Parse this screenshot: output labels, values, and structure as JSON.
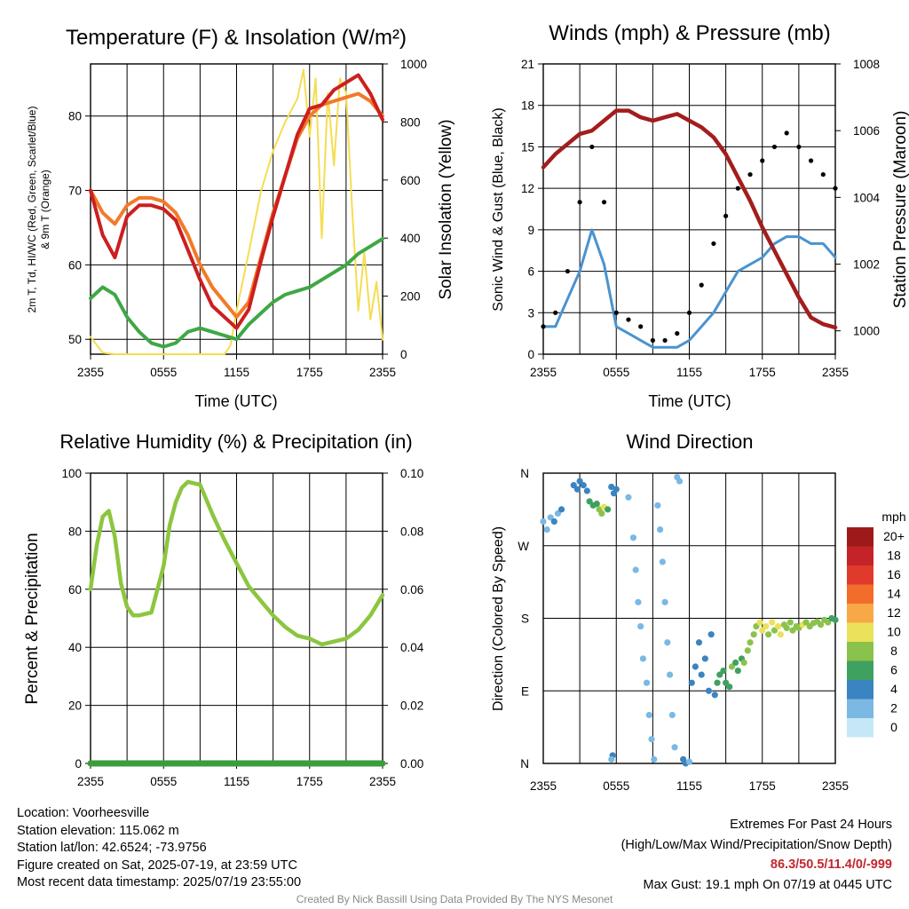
{
  "colors": {
    "temp_2m": "#cc1f1f",
    "temp_9m": "#f27a2a",
    "heat_index": "#cc1f1f",
    "dewpoint": "#3fa845",
    "insolation": "#f5dd52",
    "wind": "#4a93cf",
    "gust": "#000000",
    "pressure": "#a31d1d",
    "rh": "#8cc63f",
    "precip": "#3a9e3a",
    "grid": "#000000"
  },
  "chart_data": [
    {
      "type": "line",
      "title": "Temperature (F) & Insolation (W/m²)",
      "xlabel": "Time (UTC)",
      "ylabel_left": "2m T, Td, HI/WC (Red, Green, Scarlet/Blue) & 9m T (Orange)",
      "ylabel_left_lines": [
        "2m T, Td, HI/WC (Red, Green, Scarlet/Blue)",
        "& 9m T (Orange)"
      ],
      "ylabel_right": "Solar Insolation (Yellow)",
      "x_ticks": [
        "2355",
        "0555",
        "1155",
        "1755",
        "2355"
      ],
      "ylim_left": [
        48,
        87
      ],
      "yticks_left": [
        50,
        60,
        70,
        80
      ],
      "ylim_right": [
        0,
        1000
      ],
      "yticks_right": [
        0,
        200,
        400,
        600,
        800,
        1000
      ],
      "series": [
        {
          "key": "temp_9m",
          "axis": "left",
          "x": [
            0,
            1,
            2,
            3,
            4,
            5,
            6,
            7,
            8,
            9,
            10,
            11,
            12,
            13,
            14,
            15,
            16,
            17,
            18,
            19,
            20,
            21,
            22,
            23,
            24
          ],
          "values": [
            70,
            67,
            65.5,
            68,
            69,
            69,
            68.5,
            67,
            64,
            60,
            57,
            55,
            53,
            55,
            61,
            67,
            72,
            77,
            80,
            81.5,
            82,
            82.5,
            83,
            82,
            80
          ]
        },
        {
          "key": "temp_2m",
          "axis": "left",
          "x": [
            0,
            1,
            2,
            3,
            4,
            5,
            6,
            7,
            8,
            9,
            10,
            11,
            12,
            13,
            14,
            15,
            16,
            17,
            18,
            19,
            20,
            21,
            22,
            23,
            24
          ],
          "values": [
            70,
            64,
            61,
            66.5,
            68,
            68,
            67.5,
            66,
            62,
            58,
            54.5,
            53,
            51.5,
            54,
            60.5,
            66.5,
            72,
            77.5,
            81,
            81.5,
            83.5,
            84.5,
            85.5,
            83,
            79.5
          ]
        },
        {
          "key": "dewpoint",
          "axis": "left",
          "x": [
            0,
            1,
            2,
            3,
            4,
            5,
            6,
            7,
            8,
            9,
            10,
            11,
            12,
            13,
            14,
            15,
            16,
            17,
            18,
            19,
            20,
            21,
            22,
            23,
            24
          ],
          "values": [
            55.5,
            57,
            56,
            53,
            51,
            49.5,
            49,
            49.5,
            51,
            51.5,
            51,
            50.5,
            50,
            52,
            53.5,
            55,
            56,
            56.5,
            57,
            58,
            59,
            60,
            61.5,
            62.5,
            63.5
          ]
        },
        {
          "key": "insolation",
          "axis": "right",
          "x": [
            0,
            1,
            2,
            3,
            4,
            5,
            6,
            7,
            8,
            9,
            10,
            11,
            11.5,
            12,
            13,
            14,
            15,
            16,
            17,
            17.5,
            18,
            18.5,
            19,
            19.5,
            20,
            20.5,
            21,
            21.5,
            22,
            22.5,
            23,
            23.5,
            24
          ],
          "values": [
            60,
            5,
            0,
            0,
            0,
            0,
            0,
            0,
            0,
            0,
            0,
            0,
            30,
            150,
            350,
            560,
            700,
            800,
            880,
            980,
            750,
            950,
            400,
            900,
            650,
            950,
            900,
            500,
            150,
            350,
            120,
            250,
            50
          ]
        }
      ]
    },
    {
      "type": "line",
      "title": "Winds (mph) & Pressure (mb)",
      "xlabel": "Time (UTC)",
      "ylabel_left": "Sonic Wind & Gust (Blue, Black)",
      "ylabel_right": "Station Pressure (Maroon)",
      "x_ticks": [
        "2355",
        "0555",
        "1155",
        "1755",
        "2355"
      ],
      "ylim_left": [
        0,
        21
      ],
      "yticks_left": [
        0,
        3,
        6,
        9,
        12,
        15,
        18,
        21
      ],
      "ylim_right": [
        999.3,
        1008
      ],
      "yticks_right": [
        1000,
        1002,
        1004,
        1006,
        1008
      ],
      "series": [
        {
          "key": "wind",
          "axis": "left",
          "x": [
            0,
            1,
            2,
            3,
            4,
            5,
            6,
            7,
            8,
            9,
            10,
            11,
            12,
            13,
            14,
            15,
            16,
            17,
            18,
            19,
            20,
            21,
            22,
            23,
            24
          ],
          "values": [
            2,
            2,
            4,
            6,
            9,
            6.5,
            2,
            1.5,
            1,
            0.5,
            0.5,
            0.5,
            1,
            2,
            3,
            4.5,
            6,
            6.5,
            7,
            8,
            8.5,
            8.5,
            8,
            8,
            7
          ]
        },
        {
          "key": "gust",
          "axis": "left",
          "x": [
            0,
            1,
            2,
            3,
            4,
            5,
            6,
            7,
            8,
            9,
            10,
            11,
            12,
            13,
            14,
            15,
            16,
            17,
            18,
            19,
            20,
            21,
            22,
            23,
            24
          ],
          "values": [
            2,
            3,
            6,
            11,
            15,
            11,
            3,
            2.5,
            2,
            1,
            1,
            1.5,
            3,
            5,
            8,
            10,
            12,
            13,
            14,
            15,
            16,
            15,
            14,
            13,
            12
          ]
        },
        {
          "key": "pressure",
          "axis": "right",
          "x": [
            0,
            1,
            2,
            3,
            4,
            5,
            6,
            7,
            8,
            9,
            10,
            11,
            12,
            13,
            14,
            15,
            16,
            17,
            18,
            19,
            20,
            21,
            22,
            23,
            24
          ],
          "values": [
            1004.9,
            1005.3,
            1005.6,
            1005.9,
            1006.0,
            1006.3,
            1006.6,
            1006.6,
            1006.4,
            1006.3,
            1006.4,
            1006.5,
            1006.3,
            1006.1,
            1005.8,
            1005.3,
            1004.6,
            1003.9,
            1003.1,
            1002.4,
            1001.7,
            1001.0,
            1000.4,
            1000.2,
            1000.1
          ]
        }
      ]
    },
    {
      "type": "line",
      "title": "Relative Humidity (%) & Precipitation (in)",
      "xlabel": "",
      "ylabel_left": "Percent & Precipitation",
      "ylabel_right": "",
      "x_ticks": [
        "2355",
        "0555",
        "1155",
        "1755",
        "2355"
      ],
      "ylim_left": [
        0,
        100
      ],
      "yticks_left": [
        0,
        20,
        40,
        60,
        80,
        100
      ],
      "ylim_right": [
        0,
        0.1
      ],
      "yticks_right": [
        "0.00",
        "0.02",
        "0.04",
        "0.06",
        "0.08",
        "0.10"
      ],
      "series": [
        {
          "key": "rh",
          "axis": "left",
          "x": [
            0,
            0.5,
            1,
            1.5,
            2,
            2.5,
            3,
            3.5,
            4,
            5,
            6,
            6.5,
            7,
            7.5,
            8,
            9,
            10,
            11,
            12,
            13,
            14,
            15,
            16,
            17,
            18,
            19,
            20,
            21,
            22,
            23,
            24
          ],
          "values": [
            60,
            75,
            85,
            87,
            78,
            62,
            54,
            51,
            51,
            52,
            68,
            82,
            90,
            95,
            97,
            96,
            86,
            77,
            69,
            61,
            56,
            51,
            47,
            44,
            43,
            41,
            42,
            43,
            46,
            51,
            58
          ]
        },
        {
          "key": "precip",
          "axis": "right",
          "x": [
            0,
            24
          ],
          "values": [
            0,
            0
          ]
        }
      ]
    },
    {
      "type": "scatter",
      "title": "Wind Direction",
      "xlabel": "",
      "ylabel_left": "Direction (Colored By Speed)",
      "x_ticks": [
        "2355",
        "0555",
        "1155",
        "1755",
        "2355"
      ],
      "y_ticks": [
        "N",
        "E",
        "S",
        "W",
        "N"
      ],
      "ylim": [
        0,
        360
      ],
      "legend_title": "mph",
      "legend_labels": [
        "20+",
        "18",
        "16",
        "14",
        "12",
        "10",
        "8",
        "6",
        "4",
        "2",
        "0"
      ],
      "legend_colors": [
        "#9e1a1a",
        "#c4232a",
        "#e03a2c",
        "#f26c2b",
        "#f8a846",
        "#ebe15a",
        "#8bc24c",
        "#3fa160",
        "#3a84c2",
        "#7bb8e3",
        "#c6e8f6"
      ],
      "points": [
        {
          "x": 0.0,
          "y": 300,
          "s": 2
        },
        {
          "x": 0.3,
          "y": 290,
          "s": 2
        },
        {
          "x": 0.6,
          "y": 305,
          "s": 2
        },
        {
          "x": 0.9,
          "y": 300,
          "s": 3
        },
        {
          "x": 1.2,
          "y": 310,
          "s": 2
        },
        {
          "x": 1.5,
          "y": 315,
          "s": 3
        },
        {
          "x": 2.5,
          "y": 345,
          "s": 4
        },
        {
          "x": 2.8,
          "y": 340,
          "s": 4
        },
        {
          "x": 3.0,
          "y": 350,
          "s": 4
        },
        {
          "x": 3.3,
          "y": 345,
          "s": 4
        },
        {
          "x": 3.6,
          "y": 338,
          "s": 4
        },
        {
          "x": 3.8,
          "y": 325,
          "s": 5
        },
        {
          "x": 4.1,
          "y": 320,
          "s": 6
        },
        {
          "x": 4.4,
          "y": 322,
          "s": 6
        },
        {
          "x": 4.6,
          "y": 315,
          "s": 7
        },
        {
          "x": 4.8,
          "y": 310,
          "s": 8
        },
        {
          "x": 5.0,
          "y": 318,
          "s": 9
        },
        {
          "x": 5.3,
          "y": 315,
          "s": 6
        },
        {
          "x": 5.6,
          "y": 343,
          "s": 4
        },
        {
          "x": 5.8,
          "y": 335,
          "s": 4
        },
        {
          "x": 6.0,
          "y": 340,
          "s": 4
        },
        {
          "x": 5.7,
          "y": 10,
          "s": 3
        },
        {
          "x": 5.6,
          "y": 5,
          "s": 2
        },
        {
          "x": 7.0,
          "y": 330,
          "s": 1
        },
        {
          "x": 7.4,
          "y": 280,
          "s": 1
        },
        {
          "x": 7.6,
          "y": 240,
          "s": 1
        },
        {
          "x": 7.8,
          "y": 200,
          "s": 1
        },
        {
          "x": 8.0,
          "y": 170,
          "s": 1
        },
        {
          "x": 8.2,
          "y": 130,
          "s": 1
        },
        {
          "x": 8.5,
          "y": 100,
          "s": 1
        },
        {
          "x": 8.7,
          "y": 60,
          "s": 1
        },
        {
          "x": 8.9,
          "y": 30,
          "s": 1
        },
        {
          "x": 9.1,
          "y": 5,
          "s": 1
        },
        {
          "x": 9.4,
          "y": 320,
          "s": 1
        },
        {
          "x": 9.6,
          "y": 290,
          "s": 1
        },
        {
          "x": 9.8,
          "y": 250,
          "s": 1
        },
        {
          "x": 10.0,
          "y": 200,
          "s": 1
        },
        {
          "x": 10.2,
          "y": 150,
          "s": 1
        },
        {
          "x": 10.4,
          "y": 110,
          "s": 1
        },
        {
          "x": 10.6,
          "y": 60,
          "s": 1
        },
        {
          "x": 10.8,
          "y": 20,
          "s": 1
        },
        {
          "x": 11.0,
          "y": 355,
          "s": 1
        },
        {
          "x": 11.2,
          "y": 350,
          "s": 1
        },
        {
          "x": 11.5,
          "y": 5,
          "s": 3
        },
        {
          "x": 11.7,
          "y": 0,
          "s": 3
        },
        {
          "x": 12.0,
          "y": 2,
          "s": 2
        },
        {
          "x": 12.2,
          "y": 100,
          "s": 3
        },
        {
          "x": 12.5,
          "y": 120,
          "s": 3
        },
        {
          "x": 12.8,
          "y": 150,
          "s": 4
        },
        {
          "x": 13.0,
          "y": 110,
          "s": 4
        },
        {
          "x": 13.3,
          "y": 130,
          "s": 4
        },
        {
          "x": 13.6,
          "y": 90,
          "s": 4
        },
        {
          "x": 13.8,
          "y": 160,
          "s": 4
        },
        {
          "x": 14.1,
          "y": 85,
          "s": 4
        },
        {
          "x": 14.3,
          "y": 100,
          "s": 6
        },
        {
          "x": 14.5,
          "y": 110,
          "s": 5
        },
        {
          "x": 14.8,
          "y": 115,
          "s": 6
        },
        {
          "x": 15.0,
          "y": 100,
          "s": 5
        },
        {
          "x": 15.3,
          "y": 95,
          "s": 6
        },
        {
          "x": 15.5,
          "y": 120,
          "s": 7
        },
        {
          "x": 15.8,
          "y": 125,
          "s": 6
        },
        {
          "x": 16.0,
          "y": 115,
          "s": 6
        },
        {
          "x": 16.3,
          "y": 130,
          "s": 6
        },
        {
          "x": 16.5,
          "y": 125,
          "s": 7
        },
        {
          "x": 16.8,
          "y": 140,
          "s": 7
        },
        {
          "x": 17.0,
          "y": 150,
          "s": 7
        },
        {
          "x": 17.3,
          "y": 160,
          "s": 8
        },
        {
          "x": 17.5,
          "y": 170,
          "s": 8
        },
        {
          "x": 17.8,
          "y": 175,
          "s": 9
        },
        {
          "x": 18.0,
          "y": 165,
          "s": 9
        },
        {
          "x": 18.3,
          "y": 170,
          "s": 10
        },
        {
          "x": 18.5,
          "y": 160,
          "s": 8
        },
        {
          "x": 18.8,
          "y": 175,
          "s": 9
        },
        {
          "x": 19.0,
          "y": 165,
          "s": 8
        },
        {
          "x": 19.3,
          "y": 170,
          "s": 10
        },
        {
          "x": 19.5,
          "y": 160,
          "s": 9
        },
        {
          "x": 19.8,
          "y": 172,
          "s": 8
        },
        {
          "x": 20.0,
          "y": 168,
          "s": 8
        },
        {
          "x": 20.3,
          "y": 175,
          "s": 8
        },
        {
          "x": 20.5,
          "y": 165,
          "s": 7
        },
        {
          "x": 20.8,
          "y": 170,
          "s": 8
        },
        {
          "x": 21.0,
          "y": 168,
          "s": 8
        },
        {
          "x": 21.3,
          "y": 172,
          "s": 9
        },
        {
          "x": 21.6,
          "y": 175,
          "s": 8
        },
        {
          "x": 21.9,
          "y": 170,
          "s": 7
        },
        {
          "x": 22.2,
          "y": 174,
          "s": 8
        },
        {
          "x": 22.5,
          "y": 176,
          "s": 8
        },
        {
          "x": 22.8,
          "y": 172,
          "s": 8
        },
        {
          "x": 23.1,
          "y": 178,
          "s": 7
        },
        {
          "x": 23.4,
          "y": 175,
          "s": 7
        },
        {
          "x": 23.7,
          "y": 180,
          "s": 6
        },
        {
          "x": 24.0,
          "y": 178,
          "s": 6
        }
      ]
    }
  ],
  "info": {
    "location": "Location: Voorheesville",
    "elevation": "Station elevation: 115.062 m",
    "latlon": "Station lat/lon: 42.6524; -73.9756",
    "created": "Figure created on Sat, 2025-07-19, at 23:59 UTC",
    "recent": "Most recent data timestamp: 2025/07/19 23:55:00"
  },
  "extremes": {
    "title": "Extremes For Past 24 Hours",
    "subtitle": "(High/Low/Max Wind/Precipitation/Snow Depth)",
    "values": "86.3/50.5/11.4/0/-999",
    "max_gust": "Max Gust: 19.1 mph On 07/19 at 0445 UTC"
  },
  "credit": "Created By Nick Bassill Using Data Provided By The NYS Mesonet"
}
